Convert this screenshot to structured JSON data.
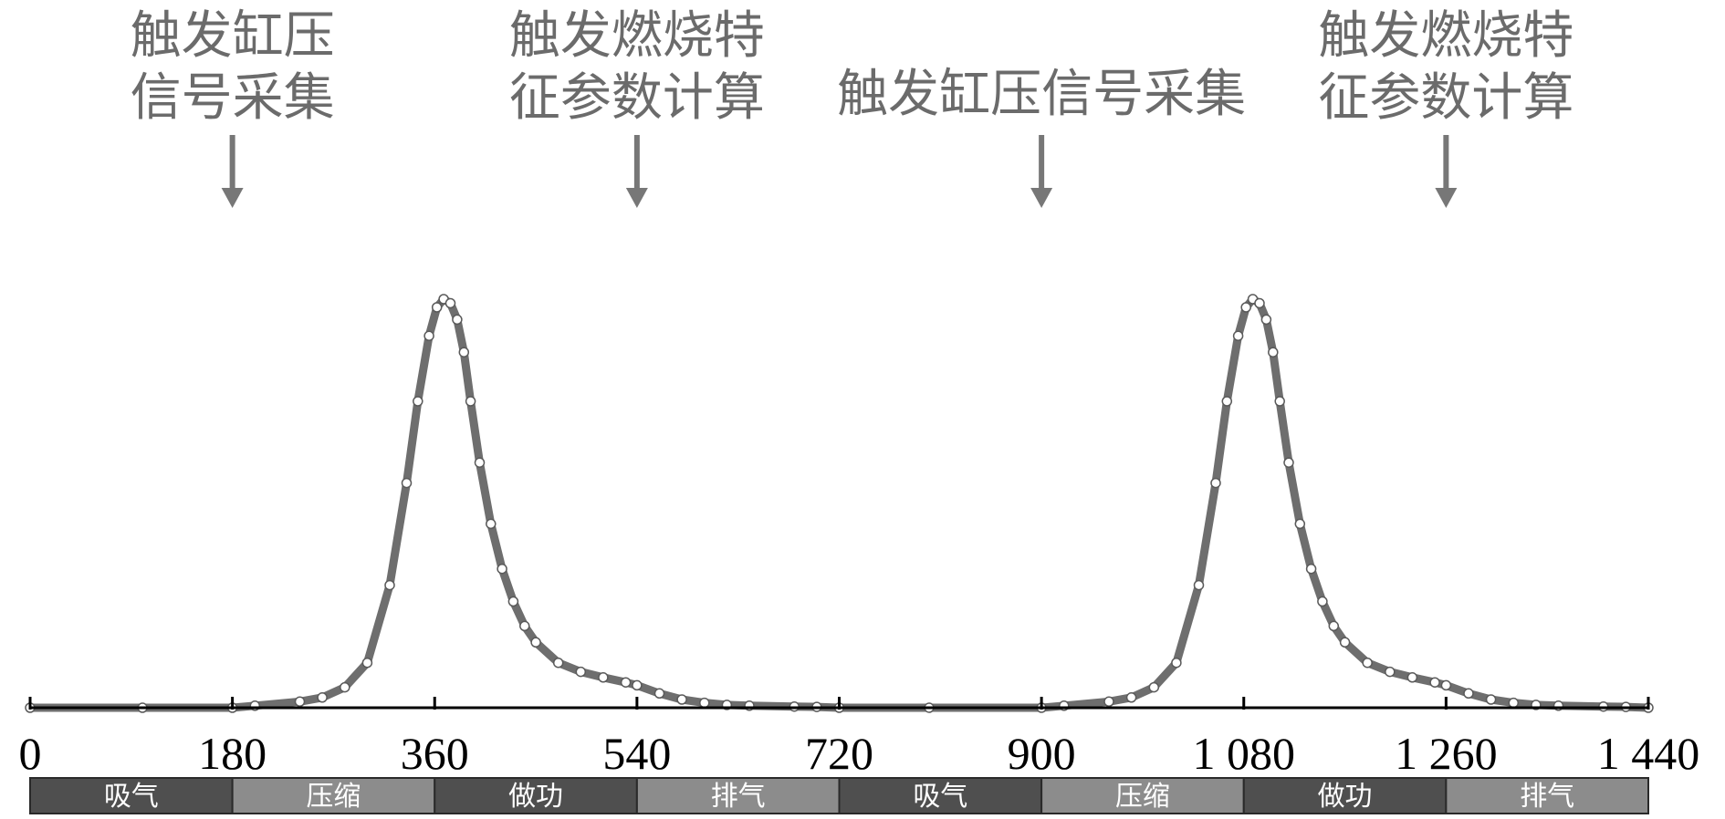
{
  "chart_data": {
    "type": "line",
    "title": "",
    "xlabel": "",
    "ylabel": "",
    "xlim": [
      0,
      1440
    ],
    "ylim": [
      0,
      1
    ],
    "x_ticks": [
      0,
      180,
      360,
      540,
      720,
      900,
      1080,
      1260,
      1440
    ],
    "x_tick_labels": [
      "0",
      "180",
      "360",
      "540",
      "720",
      "900",
      "1 080",
      "1 260",
      "1 440"
    ],
    "grid": false,
    "curve_color": "#6e6e6e",
    "marker": "open-circle",
    "series": [
      {
        "name": "",
        "x": [
          0,
          100,
          180,
          200,
          240,
          260,
          280,
          300,
          320,
          335,
          345,
          355,
          362,
          368,
          374,
          380,
          386,
          392,
          400,
          410,
          420,
          430,
          440,
          450,
          470,
          490,
          510,
          530,
          540,
          560,
          580,
          600,
          620,
          640,
          680,
          700,
          720,
          800,
          900,
          920,
          960,
          980,
          1000,
          1020,
          1040,
          1055,
          1065,
          1075,
          1082,
          1088,
          1094,
          1100,
          1106,
          1112,
          1120,
          1130,
          1140,
          1150,
          1160,
          1170,
          1190,
          1210,
          1230,
          1250,
          1260,
          1280,
          1300,
          1320,
          1340,
          1360,
          1400,
          1420,
          1440
        ],
        "y": [
          0.0,
          0.0,
          0.0,
          0.005,
          0.015,
          0.025,
          0.05,
          0.11,
          0.3,
          0.55,
          0.75,
          0.91,
          0.98,
          1.0,
          0.99,
          0.95,
          0.87,
          0.75,
          0.6,
          0.45,
          0.34,
          0.26,
          0.2,
          0.16,
          0.11,
          0.088,
          0.074,
          0.062,
          0.055,
          0.035,
          0.02,
          0.012,
          0.007,
          0.005,
          0.003,
          0.002,
          0.0,
          0.0,
          0.0,
          0.005,
          0.015,
          0.025,
          0.05,
          0.11,
          0.3,
          0.55,
          0.75,
          0.91,
          0.98,
          1.0,
          0.99,
          0.95,
          0.87,
          0.75,
          0.6,
          0.45,
          0.34,
          0.26,
          0.2,
          0.16,
          0.11,
          0.088,
          0.074,
          0.062,
          0.055,
          0.035,
          0.02,
          0.012,
          0.007,
          0.005,
          0.003,
          0.002,
          0.0
        ]
      }
    ],
    "annotations": [
      {
        "lines": [
          "触发缸压",
          "信号采集"
        ],
        "x": 180
      },
      {
        "lines": [
          "触发燃烧特",
          "征参数计算"
        ],
        "x": 540
      },
      {
        "lines": [
          "触发缸压信号采集"
        ],
        "x": 900
      },
      {
        "lines": [
          "触发燃烧特",
          "征参数计算"
        ],
        "x": 1260
      }
    ],
    "strokes": [
      {
        "label": "吸气",
        "start": 0,
        "end": 180,
        "color": "#4f4f4f"
      },
      {
        "label": "压缩",
        "start": 180,
        "end": 360,
        "color": "#8c8c8c"
      },
      {
        "label": "做功",
        "start": 360,
        "end": 540,
        "color": "#4f4f4f"
      },
      {
        "label": "排气",
        "start": 540,
        "end": 720,
        "color": "#8c8c8c"
      },
      {
        "label": "吸气",
        "start": 720,
        "end": 900,
        "color": "#4f4f4f"
      },
      {
        "label": "压缩",
        "start": 900,
        "end": 1080,
        "color": "#8c8c8c"
      },
      {
        "label": "做功",
        "start": 1080,
        "end": 1260,
        "color": "#4f4f4f"
      },
      {
        "label": "排气",
        "start": 1260,
        "end": 1440,
        "color": "#8c8c8c"
      }
    ]
  }
}
